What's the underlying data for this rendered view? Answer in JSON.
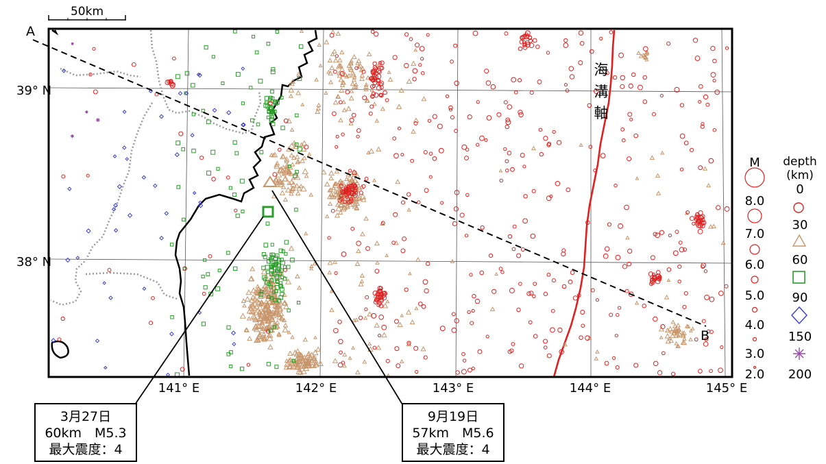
{
  "scale_bar": {
    "label": "50km"
  },
  "section": {
    "start_label": "A",
    "end_label": "B"
  },
  "lat_labels": [
    "39° N",
    "38° N"
  ],
  "lon_labels": [
    "141° E",
    "142° E",
    "143° E",
    "144° E",
    "145° E"
  ],
  "trench": {
    "label_chars": [
      "海",
      "溝",
      "軸"
    ],
    "color": "#e02020"
  },
  "legend": {
    "magnitude_title": "M",
    "magnitudes": [
      "8.0",
      "7.0",
      "6.0",
      "5.0",
      "4.0",
      "3.0",
      "2.0"
    ],
    "depth_title_1": "depth",
    "depth_title_2": "(km)",
    "depth_boundaries": [
      "0",
      "30",
      "60",
      "90",
      "150",
      "200"
    ],
    "depth_classes": [
      {
        "range": "0-30",
        "symbol": "circle",
        "color": "#e02020"
      },
      {
        "range": "30-60",
        "symbol": "triangle",
        "color": "#c8956a"
      },
      {
        "range": "60-90",
        "symbol": "square",
        "color": "#2a9d2a"
      },
      {
        "range": "90-150",
        "symbol": "diamond",
        "color": "#3a3ad0"
      },
      {
        "range": "150-200",
        "symbol": "asterisk",
        "color": "#9a4aa8"
      }
    ]
  },
  "callouts": [
    {
      "date": "3月27日",
      "depth_mag": "60km　M5.3",
      "intensity": "最大震度：4"
    },
    {
      "date": "9月19日",
      "depth_mag": "57km　M5.6",
      "intensity": "最大震度：4"
    }
  ]
}
